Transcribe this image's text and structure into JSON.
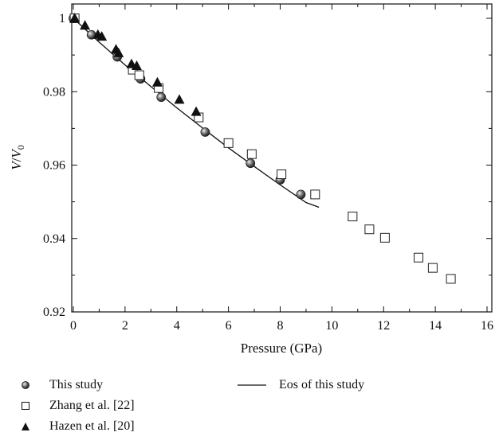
{
  "chart_data": {
    "type": "scatter",
    "title": "",
    "xlabel": "Pressure (GPa)",
    "ylabel": "V/V0",
    "xlim": [
      0,
      16
    ],
    "ylim": [
      0.92,
      1.0
    ],
    "xticks": [
      0,
      2,
      4,
      6,
      8,
      10,
      12,
      14,
      16
    ],
    "xtick_labels": [
      "0",
      "2",
      "4",
      "6",
      "8",
      "10",
      "12",
      "14",
      "16"
    ],
    "yticks": [
      0.92,
      0.94,
      0.96,
      0.98,
      1.0
    ],
    "ytick_labels": [
      "0.92",
      "0.94",
      "0.96",
      "0.98",
      "1"
    ],
    "grid": false,
    "legend_placement": "below",
    "series": [
      {
        "name": "This study",
        "marker": "shaded-circle",
        "color": "#222222",
        "points": [
          [
            0.0,
            1.0
          ],
          [
            0.7,
            0.9955
          ],
          [
            1.7,
            0.9895
          ],
          [
            2.6,
            0.9835
          ],
          [
            3.4,
            0.9785
          ],
          [
            5.1,
            0.969
          ],
          [
            6.85,
            0.9605
          ],
          [
            8.0,
            0.956
          ],
          [
            8.8,
            0.952
          ]
        ]
      },
      {
        "name": "Zhang et al. [22]",
        "marker": "open-square",
        "color": "#222222",
        "points": [
          [
            0.05,
            1.0
          ],
          [
            2.3,
            0.986
          ],
          [
            2.55,
            0.9845
          ],
          [
            3.3,
            0.981
          ],
          [
            4.85,
            0.973
          ],
          [
            6.0,
            0.966
          ],
          [
            6.9,
            0.963
          ],
          [
            8.05,
            0.9575
          ],
          [
            9.35,
            0.952
          ],
          [
            10.8,
            0.946
          ],
          [
            11.45,
            0.9425
          ],
          [
            12.05,
            0.9402
          ],
          [
            13.35,
            0.9348
          ],
          [
            13.9,
            0.932
          ],
          [
            14.6,
            0.929
          ]
        ]
      },
      {
        "name": "Hazen et al. [20]",
        "marker": "filled-triangle",
        "color": "#111111",
        "points": [
          [
            0.05,
            1.0
          ],
          [
            0.45,
            0.998
          ],
          [
            0.95,
            0.9955
          ],
          [
            1.1,
            0.995
          ],
          [
            1.65,
            0.9915
          ],
          [
            1.75,
            0.9905
          ],
          [
            2.25,
            0.9875
          ],
          [
            2.45,
            0.987
          ],
          [
            3.25,
            0.9825
          ],
          [
            4.1,
            0.9778
          ],
          [
            4.75,
            0.9745
          ]
        ]
      },
      {
        "name": "Eos of this study",
        "marker": "line",
        "color": "#111111",
        "points": [
          [
            0.0,
            1.0
          ],
          [
            1.0,
            0.9935
          ],
          [
            2.0,
            0.9873
          ],
          [
            3.0,
            0.9814
          ],
          [
            4.0,
            0.9756
          ],
          [
            5.0,
            0.9701
          ],
          [
            6.0,
            0.9647
          ],
          [
            7.0,
            0.9596
          ],
          [
            8.0,
            0.9546
          ],
          [
            9.0,
            0.9498
          ],
          [
            9.5,
            0.9485
          ]
        ]
      }
    ]
  },
  "legend": {
    "items": [
      {
        "label": "This study",
        "marker": "shaded-circle"
      },
      {
        "label": "Eos of this study",
        "marker": "line"
      },
      {
        "label": "Zhang et al. [22]",
        "marker": "open-square"
      },
      {
        "label": "Hazen et al. [20]",
        "marker": "filled-triangle"
      }
    ]
  }
}
